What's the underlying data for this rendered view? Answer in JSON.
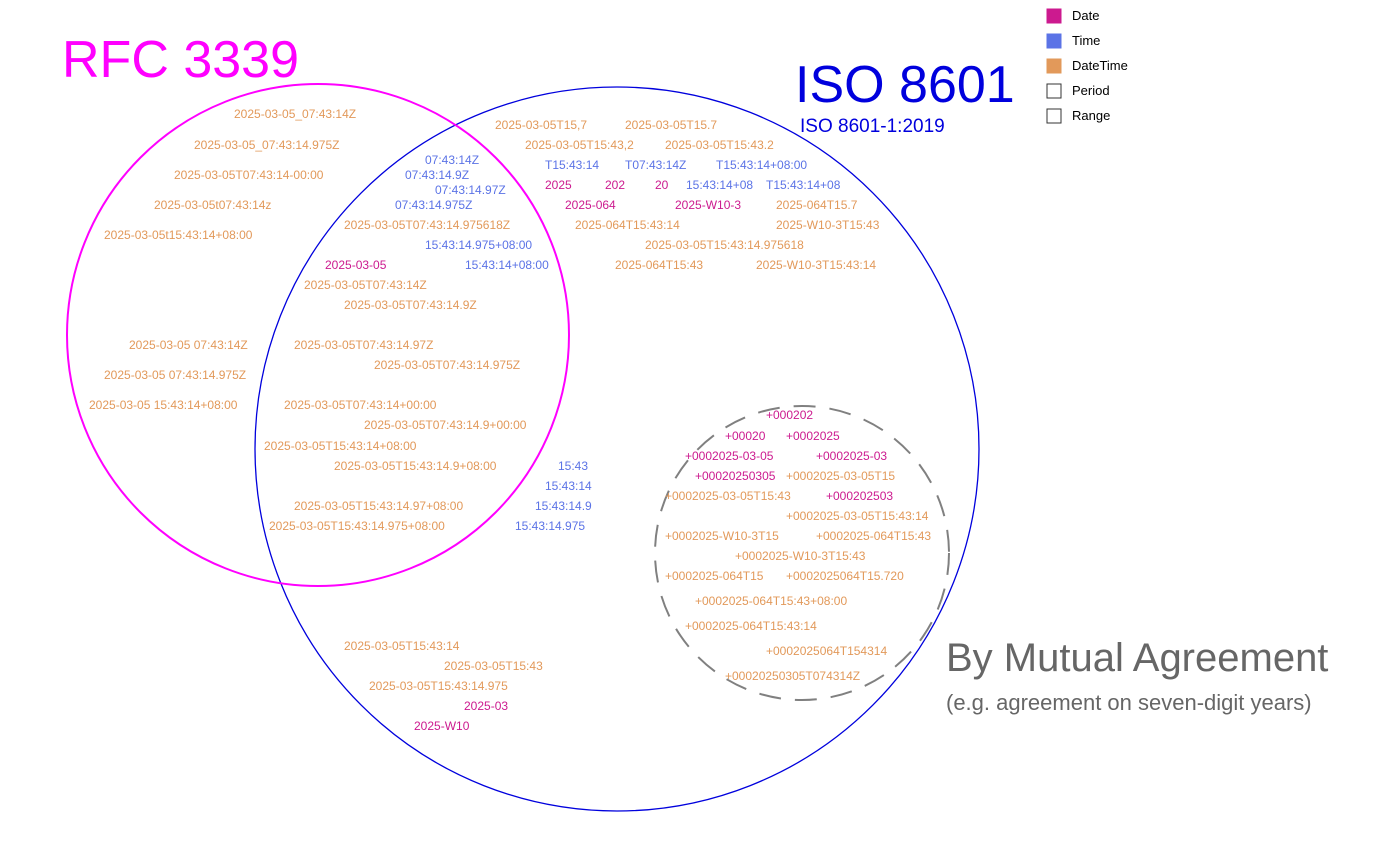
{
  "colors": {
    "date": "#cc1a8f",
    "time": "#5b73e6",
    "datetime": "#e2995a",
    "rfc_circle": "#ff00ff",
    "iso_circle": "#0000dd",
    "mutual_circle": "#808080",
    "mutual_text": "#666666"
  },
  "titles": {
    "rfc": "RFC 3339",
    "iso": "ISO 8601",
    "iso_sub": "ISO 8601-1:2019",
    "mutual": "By Mutual Agreement",
    "mutual_sub": "(e.g. agreement on seven-digit years)"
  },
  "legend": [
    {
      "label": "Date",
      "type": "date",
      "filled": true
    },
    {
      "label": "Time",
      "type": "time",
      "filled": true
    },
    {
      "label": "DateTime",
      "type": "datetime",
      "filled": true
    },
    {
      "label": "Period",
      "type": "period",
      "filled": false
    },
    {
      "label": "Range",
      "type": "range",
      "filled": false
    }
  ],
  "examples": {
    "rfc_only": [
      {
        "text": "2025-03-05_07:43:14Z",
        "type": "datetime"
      },
      {
        "text": "2025-03-05_07:43:14.975Z",
        "type": "datetime"
      },
      {
        "text": "2025-03-05T07:43:14-00:00",
        "type": "datetime"
      },
      {
        "text": "2025-03-05t07:43:14z",
        "type": "datetime"
      },
      {
        "text": "2025-03-05t15:43:14+08:00",
        "type": "datetime"
      },
      {
        "text": "2025-03-05 07:43:14Z",
        "type": "datetime"
      },
      {
        "text": "2025-03-05 07:43:14.975Z",
        "type": "datetime"
      },
      {
        "text": "2025-03-05 15:43:14+08:00",
        "type": "datetime"
      }
    ],
    "both": [
      {
        "text": "07:43:14Z",
        "type": "time"
      },
      {
        "text": "07:43:14.9Z",
        "type": "time"
      },
      {
        "text": "07:43:14.97Z",
        "type": "time"
      },
      {
        "text": "07:43:14.975Z",
        "type": "time"
      },
      {
        "text": "2025-03-05T07:43:14.975618Z",
        "type": "datetime"
      },
      {
        "text": "15:43:14.975+08:00",
        "type": "time"
      },
      {
        "text": "2025-03-05",
        "type": "date"
      },
      {
        "text": "15:43:14+08:00",
        "type": "time"
      },
      {
        "text": "2025-03-05T07:43:14Z",
        "type": "datetime"
      },
      {
        "text": "2025-03-05T07:43:14.9Z",
        "type": "datetime"
      },
      {
        "text": "2025-03-05T07:43:14.97Z",
        "type": "datetime"
      },
      {
        "text": "2025-03-05T07:43:14.975Z",
        "type": "datetime"
      },
      {
        "text": "2025-03-05T07:43:14+00:00",
        "type": "datetime"
      },
      {
        "text": "2025-03-05T07:43:14.9+00:00",
        "type": "datetime"
      },
      {
        "text": "2025-03-05T15:43:14+08:00",
        "type": "datetime"
      },
      {
        "text": "2025-03-05T15:43:14.9+08:00",
        "type": "datetime"
      },
      {
        "text": "2025-03-05T15:43:14.97+08:00",
        "type": "datetime"
      },
      {
        "text": "2025-03-05T15:43:14.975+08:00",
        "type": "datetime"
      }
    ],
    "iso_only": [
      {
        "text": "2025-03-05T15,7",
        "type": "datetime"
      },
      {
        "text": "2025-03-05T15.7",
        "type": "datetime"
      },
      {
        "text": "2025-03-05T15:43,2",
        "type": "datetime"
      },
      {
        "text": "2025-03-05T15:43.2",
        "type": "datetime"
      },
      {
        "text": "T15:43:14",
        "type": "time"
      },
      {
        "text": "T07:43:14Z",
        "type": "time"
      },
      {
        "text": "T15:43:14+08:00",
        "type": "time"
      },
      {
        "text": "2025",
        "type": "date"
      },
      {
        "text": "202",
        "type": "date"
      },
      {
        "text": "20",
        "type": "date"
      },
      {
        "text": "15:43:14+08",
        "type": "time"
      },
      {
        "text": "T15:43:14+08",
        "type": "time"
      },
      {
        "text": "2025-064",
        "type": "date"
      },
      {
        "text": "2025-W10-3",
        "type": "date"
      },
      {
        "text": "2025-064T15.7",
        "type": "datetime"
      },
      {
        "text": "2025-064T15:43:14",
        "type": "datetime"
      },
      {
        "text": "2025-W10-3T15:43",
        "type": "datetime"
      },
      {
        "text": "2025-03-05T15:43:14.975618",
        "type": "datetime"
      },
      {
        "text": "2025-064T15:43",
        "type": "datetime"
      },
      {
        "text": "2025-W10-3T15:43:14",
        "type": "datetime"
      },
      {
        "text": "15:43",
        "type": "time"
      },
      {
        "text": "15:43:14",
        "type": "time"
      },
      {
        "text": "15:43:14.9",
        "type": "time"
      },
      {
        "text": "15:43:14.975",
        "type": "time"
      },
      {
        "text": "2025-03-05T15:43:14",
        "type": "datetime"
      },
      {
        "text": "2025-03-05T15:43",
        "type": "datetime"
      },
      {
        "text": "2025-03-05T15:43:14.975",
        "type": "datetime"
      },
      {
        "text": "2025-03",
        "type": "date"
      },
      {
        "text": "2025-W10",
        "type": "date"
      }
    ],
    "mutual": [
      {
        "text": "+000202",
        "type": "date"
      },
      {
        "text": "+00020",
        "type": "date"
      },
      {
        "text": "+0002025",
        "type": "date"
      },
      {
        "text": "+0002025-03-05",
        "type": "date"
      },
      {
        "text": "+0002025-03",
        "type": "date"
      },
      {
        "text": "+00020250305",
        "type": "date"
      },
      {
        "text": "+0002025-03-05T15",
        "type": "datetime"
      },
      {
        "text": "+0002025-03-05T15:43",
        "type": "datetime"
      },
      {
        "text": "+000202503",
        "type": "date"
      },
      {
        "text": "+0002025-03-05T15:43:14",
        "type": "datetime"
      },
      {
        "text": "+0002025-W10-3T15",
        "type": "datetime"
      },
      {
        "text": "+0002025-064T15:43",
        "type": "datetime"
      },
      {
        "text": "+0002025-W10-3T15:43",
        "type": "datetime"
      },
      {
        "text": "+0002025-064T15",
        "type": "datetime"
      },
      {
        "text": "+0002025064T15.720",
        "type": "datetime"
      },
      {
        "text": "+0002025-064T15:43+08:00",
        "type": "datetime"
      },
      {
        "text": "+0002025-064T15:43:14",
        "type": "datetime"
      },
      {
        "text": "+0002025064T154314",
        "type": "datetime"
      },
      {
        "text": "+00020250305T074314Z",
        "type": "datetime"
      }
    ]
  }
}
